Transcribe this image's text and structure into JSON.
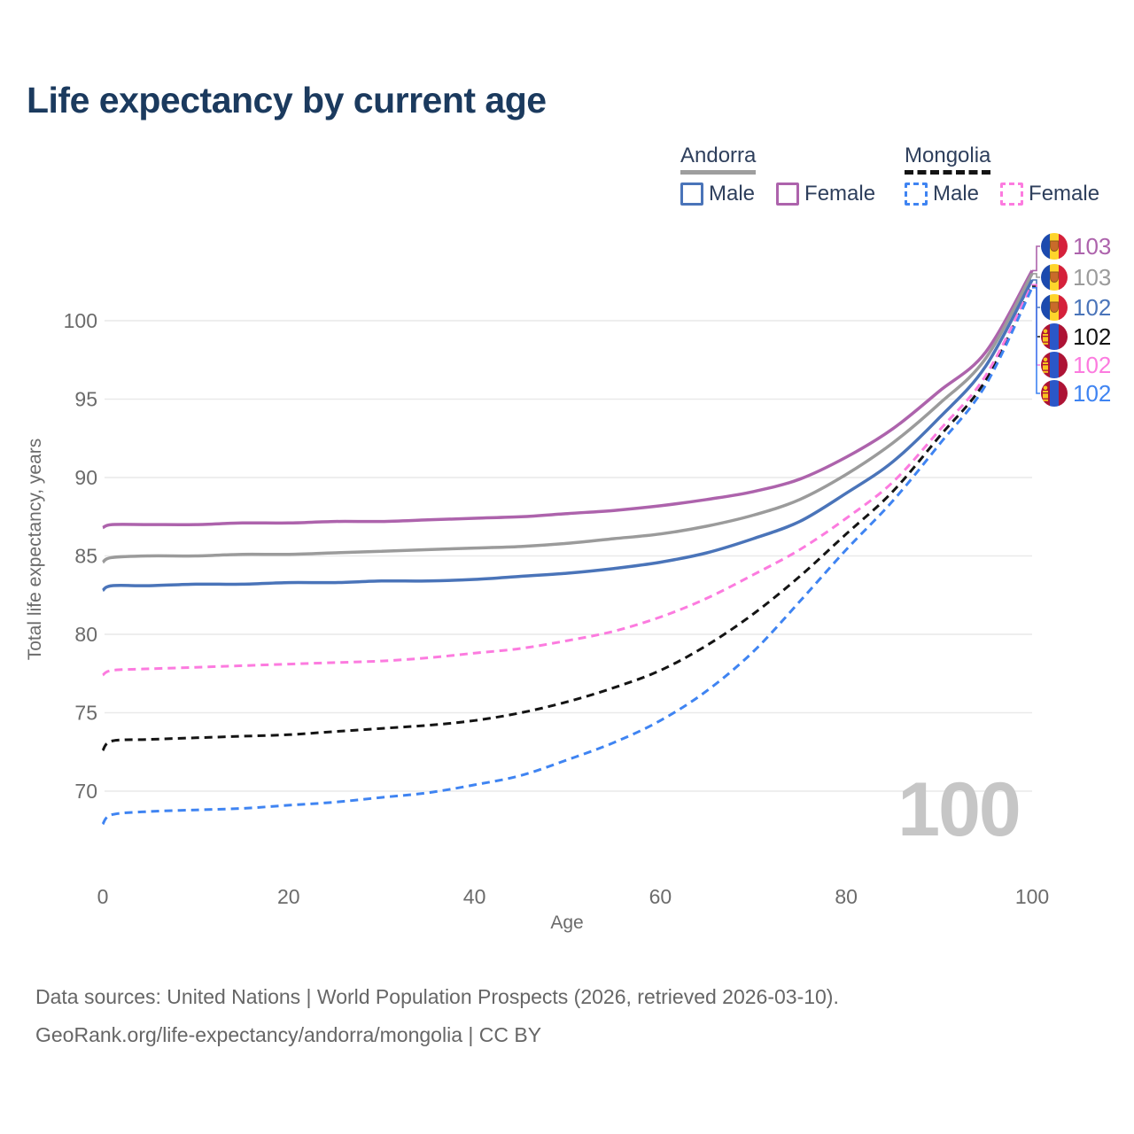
{
  "title": "Life expectancy by current age",
  "watermark": "100",
  "legend": {
    "groups": [
      {
        "id": "andorra",
        "label": "Andorra",
        "underline": "solid",
        "items": [
          {
            "id": "andorra-male",
            "label": "Male",
            "color": "#4a74b9",
            "dashed": false
          },
          {
            "id": "andorra-female",
            "label": "Female",
            "color": "#ad63ac",
            "dashed": false
          }
        ]
      },
      {
        "id": "mongolia",
        "label": "Mongolia",
        "underline": "dashed",
        "items": [
          {
            "id": "mongolia-male",
            "label": "Male",
            "color": "#3f84f2",
            "dashed": true
          },
          {
            "id": "mongolia-female",
            "label": "Female",
            "color": "#fc7bdf",
            "dashed": true
          }
        ]
      }
    ]
  },
  "footer": {
    "line1": "Data sources: United Nations | World Population Prospects (2026, retrieved 2026-03-10).",
    "line2": "GeoRank.org/life-expectancy/andorra/mongolia | CC BY"
  },
  "chart_data": {
    "type": "line",
    "title": "Life expectancy by current age",
    "xlabel": "Age",
    "ylabel": "Total life expectancy, years",
    "xlim": [
      0,
      100
    ],
    "ylim": [
      67,
      104
    ],
    "x_ticks": [
      0,
      20,
      40,
      60,
      80,
      100
    ],
    "y_ticks": [
      70,
      75,
      80,
      85,
      90,
      95,
      100
    ],
    "grid": "horizontal",
    "legend_position": "top-right",
    "x": [
      0,
      1,
      5,
      10,
      15,
      20,
      25,
      30,
      35,
      40,
      45,
      50,
      55,
      60,
      65,
      70,
      75,
      80,
      85,
      90,
      95,
      100
    ],
    "series": [
      {
        "name": "Andorra Female",
        "slug": "andorra-female",
        "country": "Andorra",
        "flag": "andorra",
        "color": "#ad63ac",
        "dash": "solid",
        "end_label": "103",
        "values": [
          86.8,
          87.0,
          87.0,
          87.0,
          87.1,
          87.1,
          87.2,
          87.2,
          87.3,
          87.4,
          87.5,
          87.7,
          87.9,
          88.2,
          88.6,
          89.1,
          89.9,
          91.3,
          93.1,
          95.5,
          98.0,
          103.2
        ]
      },
      {
        "name": "Andorra",
        "slug": "andorra-both",
        "country": "Andorra",
        "flag": "andorra",
        "color": "#9b9b9b",
        "dash": "solid",
        "end_label": "103",
        "values": [
          84.6,
          84.9,
          85.0,
          85.0,
          85.1,
          85.1,
          85.2,
          85.3,
          85.4,
          85.5,
          85.6,
          85.8,
          86.1,
          86.4,
          86.9,
          87.6,
          88.6,
          90.2,
          92.2,
          94.7,
          97.6,
          103.0
        ]
      },
      {
        "name": "Andorra Male",
        "slug": "andorra-male",
        "country": "Andorra",
        "flag": "andorra",
        "color": "#4a74b9",
        "dash": "solid",
        "end_label": "102",
        "values": [
          82.8,
          83.1,
          83.1,
          83.2,
          83.2,
          83.3,
          83.3,
          83.4,
          83.4,
          83.5,
          83.7,
          83.9,
          84.2,
          84.6,
          85.2,
          86.1,
          87.2,
          89.0,
          91.0,
          93.8,
          97.1,
          102.6
        ]
      },
      {
        "name": "Mongolia",
        "slug": "mongolia-both",
        "country": "Mongolia",
        "flag": "mongolia",
        "color": "#141414",
        "dash": "dashed",
        "end_label": "102",
        "values": [
          72.6,
          73.2,
          73.3,
          73.4,
          73.5,
          73.6,
          73.8,
          74.0,
          74.2,
          74.5,
          75.0,
          75.7,
          76.6,
          77.7,
          79.3,
          81.3,
          83.7,
          86.4,
          89.1,
          92.6,
          96.2,
          102.2
        ]
      },
      {
        "name": "Mongolia Female",
        "slug": "mongolia-female",
        "country": "Mongolia",
        "flag": "mongolia",
        "color": "#fc7bdf",
        "dash": "dashed",
        "end_label": "102",
        "values": [
          77.4,
          77.7,
          77.8,
          77.9,
          78.0,
          78.1,
          78.2,
          78.3,
          78.5,
          78.8,
          79.1,
          79.6,
          80.2,
          81.1,
          82.3,
          83.8,
          85.4,
          87.4,
          89.7,
          93.0,
          96.5,
          102.3
        ]
      },
      {
        "name": "Mongolia Male",
        "slug": "mongolia-male",
        "country": "Mongolia",
        "flag": "mongolia",
        "color": "#3f84f2",
        "dash": "dashed",
        "end_label": "102",
        "values": [
          67.9,
          68.5,
          68.7,
          68.8,
          68.9,
          69.1,
          69.3,
          69.6,
          69.9,
          70.4,
          71.0,
          72.0,
          73.1,
          74.5,
          76.4,
          78.9,
          82.1,
          85.4,
          88.5,
          92.1,
          95.9,
          102.1
        ]
      }
    ]
  }
}
